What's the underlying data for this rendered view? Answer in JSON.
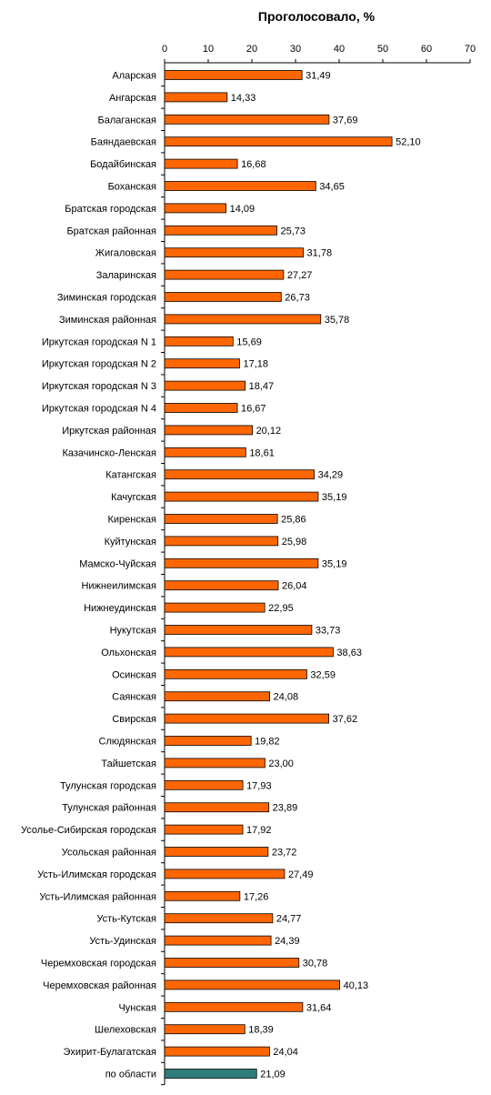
{
  "chart_data": {
    "type": "bar",
    "orientation": "horizontal",
    "title": "Проголосовало, %",
    "xlim": [
      0,
      70
    ],
    "ticks": [
      "0",
      "10",
      "20",
      "30",
      "40",
      "50",
      "60",
      "70"
    ],
    "categories": [
      "Аларская",
      "Ангарская",
      "Балаганская",
      "Баяндаевская",
      "Бодайбинская",
      "Боханская",
      "Братская городская",
      "Братская районная",
      "Жигаловская",
      "Заларинская",
      "Зиминская городская",
      "Зиминская районная",
      "Иркутская городская N 1",
      "Иркутская городская N 2",
      "Иркутская городская N 3",
      "Иркутская городская N 4",
      "Иркутская районная",
      "Казачинско-Ленская",
      "Катангская",
      "Качугская",
      "Киренская",
      "Куйтунская",
      "Мамско-Чуйская",
      "Нижнеилимская",
      "Нижнеудинская",
      "Нукутская",
      "Ольхонская",
      "Осинская",
      "Саянская",
      "Свирская",
      "Слюдянская",
      "Тайшетская",
      "Тулунская городская",
      "Тулунская районная",
      "Усолье-Сибирская городская",
      "Усольская районная",
      "Усть-Илимская городская",
      "Усть-Илимская районная",
      "Усть-Кутская",
      "Усть-Удинская",
      "Черемховская городская",
      "Черемховская районная",
      "Чунская",
      "Шелеховская",
      "Эхирит-Булагатская",
      "по области"
    ],
    "values": [
      31.49,
      14.33,
      37.69,
      52.1,
      16.68,
      34.65,
      14.09,
      25.73,
      31.78,
      27.27,
      26.73,
      35.78,
      15.69,
      17.18,
      18.47,
      16.67,
      20.12,
      18.61,
      34.29,
      35.19,
      25.86,
      25.98,
      35.19,
      26.04,
      22.95,
      33.73,
      38.63,
      32.59,
      24.08,
      37.62,
      19.82,
      23.0,
      17.93,
      23.89,
      17.92,
      23.72,
      27.49,
      17.26,
      24.77,
      24.39,
      30.78,
      40.13,
      31.64,
      18.39,
      24.04,
      21.09
    ],
    "value_labels": [
      "31,49",
      "14,33",
      "37,69",
      "52,10",
      "16,68",
      "34,65",
      "14,09",
      "25,73",
      "31,78",
      "27,27",
      "26,73",
      "35,78",
      "15,69",
      "17,18",
      "18,47",
      "16,67",
      "20,12",
      "18,61",
      "34,29",
      "35,19",
      "25,86",
      "25,98",
      "35,19",
      "26,04",
      "22,95",
      "33,73",
      "38,63",
      "32,59",
      "24,08",
      "37,62",
      "19,82",
      "23,00",
      "17,93",
      "23,89",
      "17,92",
      "23,72",
      "27,49",
      "17,26",
      "24,77",
      "24,39",
      "30,78",
      "40,13",
      "31,64",
      "18,39",
      "24,04",
      "21,09"
    ],
    "colors": {
      "bar": "#ff6600",
      "total_bar": "#2e7d7a",
      "bar_stroke": "#000000",
      "axis": "#000000"
    }
  }
}
